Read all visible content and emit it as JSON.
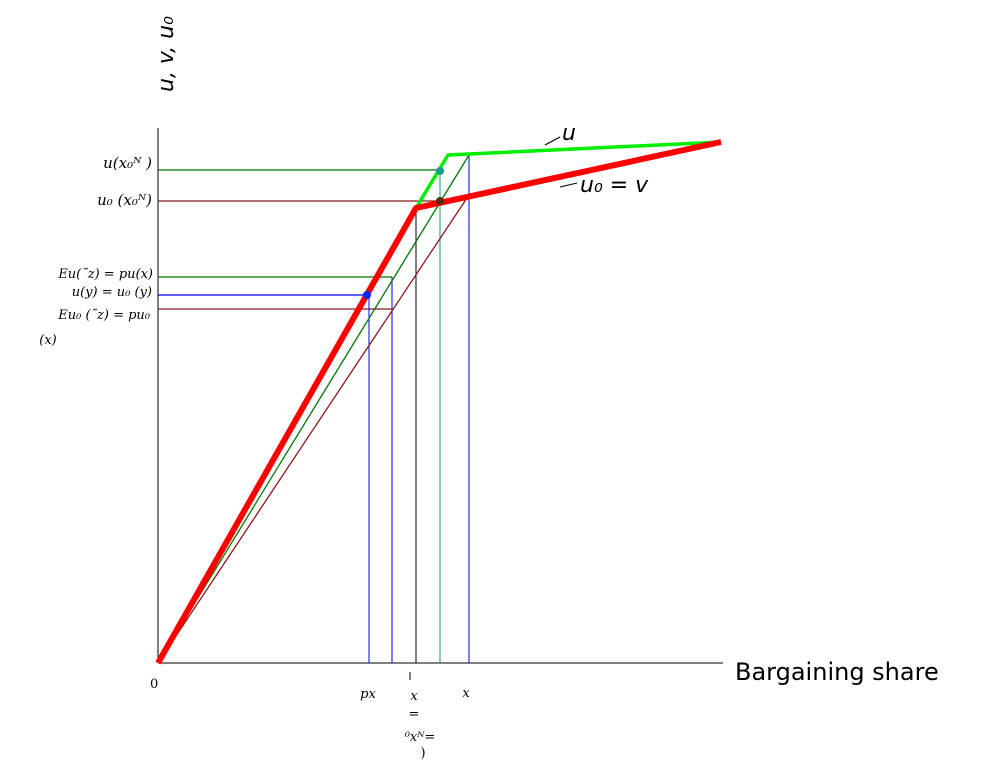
{
  "figure": {
    "y_axis_label": "u, v, u₀",
    "x_axis_label": "Bargaining share",
    "origin_label": "0",
    "curve_labels": {
      "u": "u",
      "u0_v": "u₀ = v"
    },
    "y_tick_labels": [
      "u(x₀ᴺ )",
      "u₀ (x₀ᴺ)",
      "Eu(˜z) = pu(x)",
      "u(y) = u₀ (y)",
      "Eu₀ (˜z) = pu₀",
      "(x)"
    ],
    "x_tick_labels": [
      "px",
      "x",
      "=",
      "⁰xᴺ=",
      ")",
      "x"
    ]
  },
  "colors": {
    "axis": "#000000",
    "u_curve": "#00ee00",
    "u0_curve": "#ff0000",
    "green_guide": "#007700",
    "maroon_guide": "#8b1a1a",
    "blue_guide": "#0000ff",
    "teal_guide": "#1a9a7a",
    "point_blue": "#0022ff",
    "point_teal": "#1a9a8a",
    "point_dark": "#5a2a10"
  }
}
